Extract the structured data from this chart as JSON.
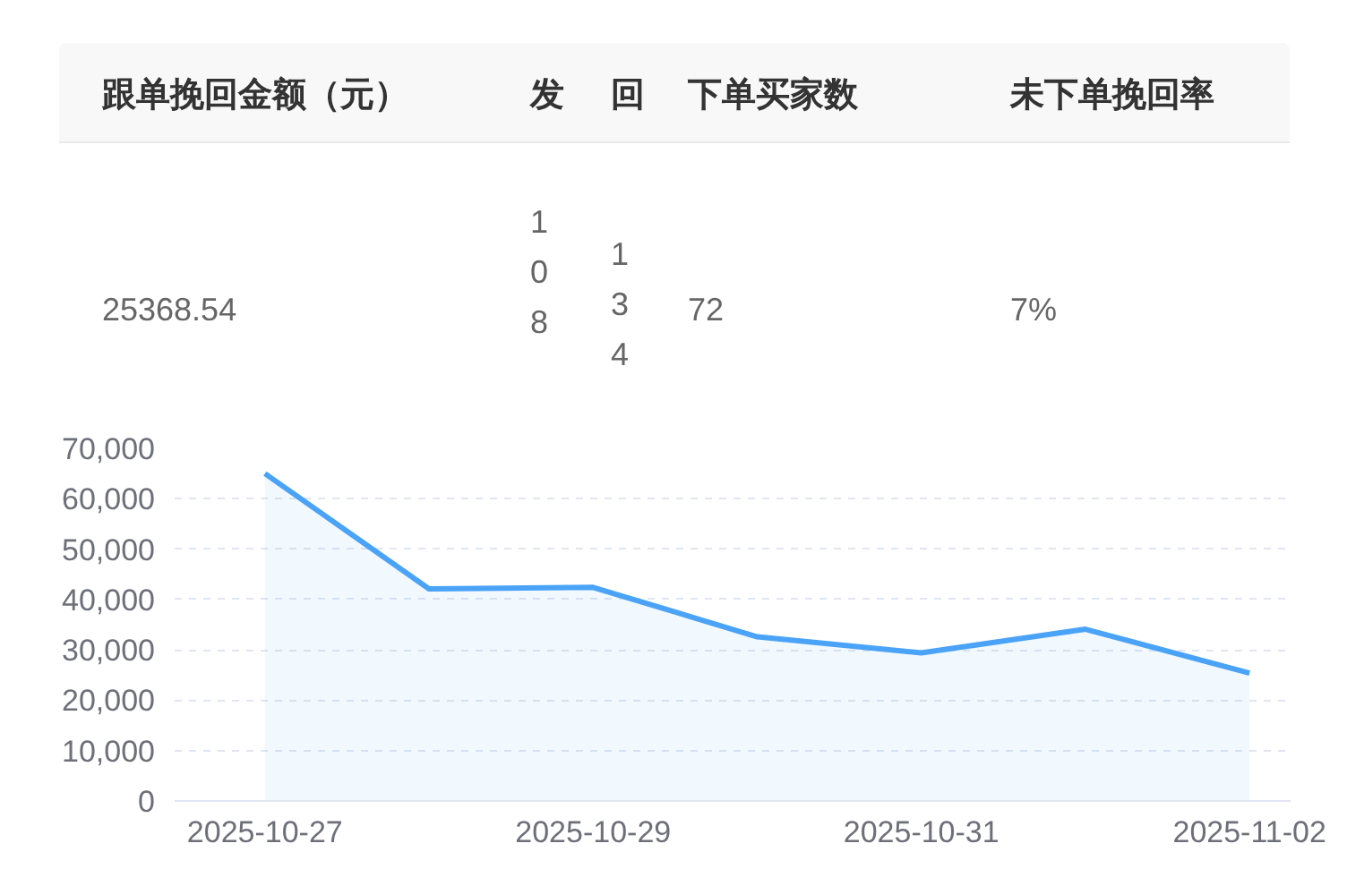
{
  "chart_data": [
    {
      "type": "other",
      "annotations": [
        "跟单挽回金额（元）",
        "发",
        "回",
        "下单买家数",
        "未下单挽回率",
        "25368.54",
        "108",
        "134",
        "72",
        "7%"
      ]
    },
    {
      "type": "area",
      "categories": [
        "2025-10-27",
        null,
        "2025-10-29",
        null,
        "2025-10-31",
        null,
        "2025-11-02"
      ],
      "series": [
        {
          "color": "#4aa3f7",
          "values": [
            65000,
            42100,
            42400,
            32600,
            29400,
            34100,
            25400
          ]
        }
      ],
      "ylim": [
        0,
        70000
      ],
      "yticks": [
        0,
        {
          "value": 10000,
          "label": "10,000"
        },
        {
          "value": 20000,
          "label": "20,000"
        },
        {
          "value": 30000,
          "label": "30,000"
        },
        {
          "value": 40000,
          "label": "40,000"
        },
        {
          "value": 50000,
          "label": "50,000"
        },
        {
          "value": 60000,
          "label": "60,000"
        },
        {
          "value": 70000,
          "label": "70,000"
        }
      ],
      "grid": "y",
      "marker": "none",
      "line_style": "solid"
    }
  ]
}
